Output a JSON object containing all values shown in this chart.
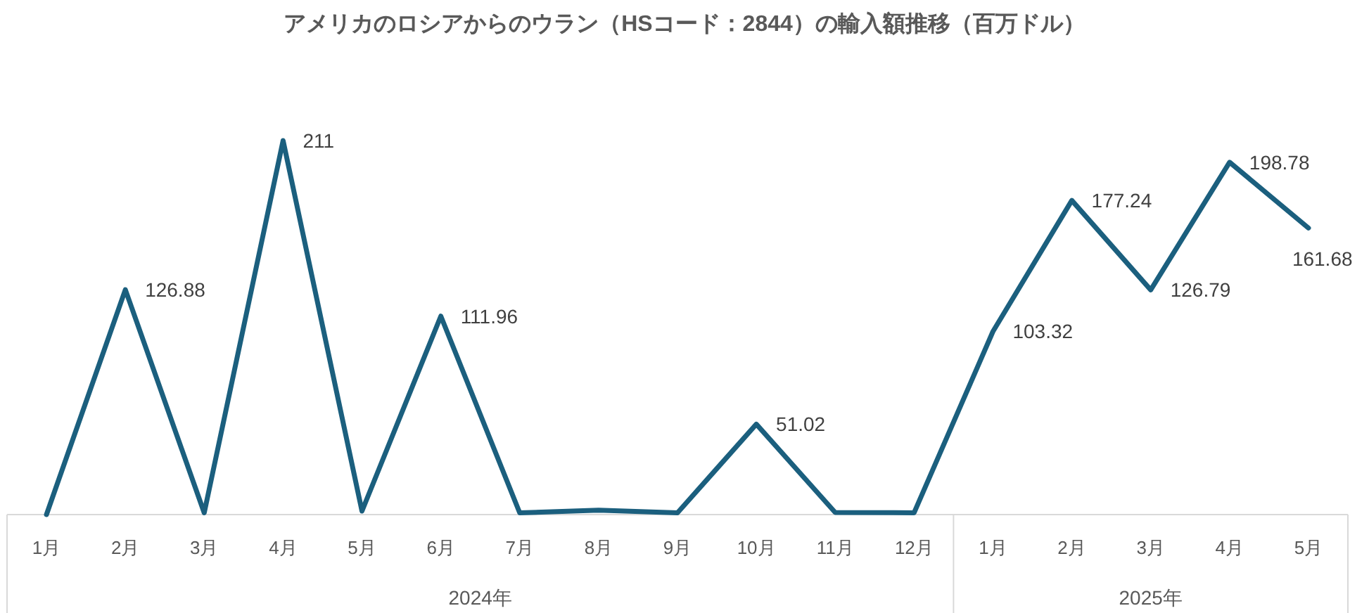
{
  "chart_data": {
    "type": "line",
    "title": "アメリカのロシアからのウラン（HSコード：2844）の輸入額推移（百万ドル）",
    "categories": [
      "1月",
      "2月",
      "3月",
      "4月",
      "5月",
      "6月",
      "7月",
      "8月",
      "9月",
      "10月",
      "11月",
      "12月",
      "1月",
      "2月",
      "3月",
      "4月",
      "5月"
    ],
    "tick_labels": "x",
    "series": [
      {
        "color": "#1b5f7e",
        "values": [
          0,
          126.88,
          1,
          211,
          2,
          111.96,
          1,
          2.5,
          1,
          51.02,
          1.2,
          1,
          103.32,
          177.24,
          126.79,
          198.78,
          161.68
        ],
        "value_labels": [
          null,
          "126.88",
          null,
          "211",
          null,
          "111.96",
          null,
          null,
          null,
          "51.02",
          null,
          null,
          "103.32",
          "177.24",
          "126.79",
          "198.78",
          "161.68"
        ]
      }
    ],
    "annotations": [
      "2024年",
      "2025年"
    ]
  }
}
